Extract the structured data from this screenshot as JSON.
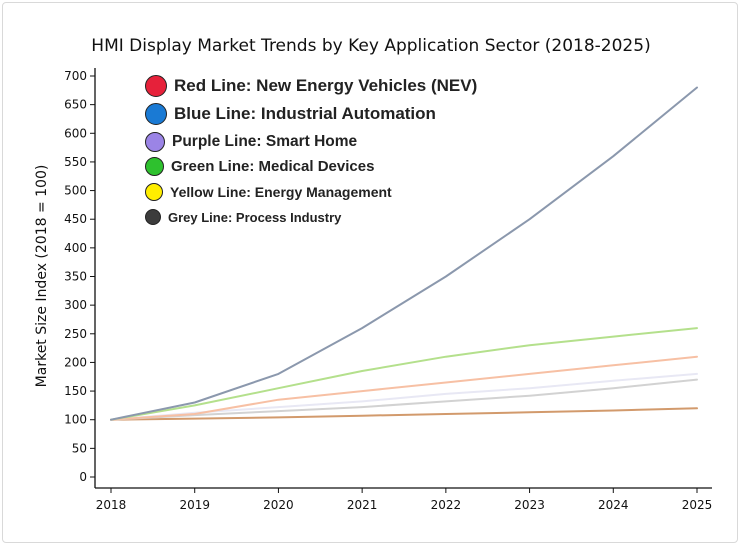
{
  "chart_data": {
    "type": "line",
    "title": "HMI Display Market Trends by Key Application Sector (2018-2025)",
    "xlabel": "",
    "ylabel": "Market Size Index (2018 = 100)",
    "x": [
      "2018",
      "2019",
      "2020",
      "2021",
      "2022",
      "2023",
      "2024",
      "2025"
    ],
    "ylim": [
      0,
      700
    ],
    "yticks": [
      0,
      50,
      100,
      150,
      200,
      250,
      300,
      350,
      400,
      450,
      500,
      550,
      600,
      650,
      700
    ],
    "series": [
      {
        "name": "Blue Line: Industrial Automation",
        "color": "#8b98ad",
        "values": [
          100,
          130,
          180,
          260,
          350,
          450,
          560,
          680
        ]
      },
      {
        "name": "Green Line: Medical Devices",
        "color": "#b4e08c",
        "values": [
          100,
          125,
          155,
          185,
          210,
          230,
          245,
          260
        ]
      },
      {
        "name": "Red Line: New Energy Vehicles (NEV)",
        "color": "#f7c0a4",
        "values": [
          100,
          110,
          135,
          150,
          165,
          180,
          195,
          210
        ]
      },
      {
        "name": "Purple Line: Smart Home",
        "color": "#e8e8f4",
        "values": [
          100,
          112,
          122,
          132,
          145,
          155,
          168,
          180
        ]
      },
      {
        "name": "Grey Line: Process Industry",
        "color": "#d2d2d2",
        "values": [
          100,
          108,
          115,
          122,
          132,
          142,
          155,
          170
        ]
      },
      {
        "name": "Yellow Line: Energy Management",
        "color": "#d29a6c",
        "values": [
          100,
          102,
          104,
          107,
          110,
          113,
          116,
          120
        ]
      }
    ]
  },
  "legend": [
    {
      "label": "Red Line: New Energy Vehicles (NEV)",
      "color": "#e6213a"
    },
    {
      "label": "Blue Line: Industrial Automation",
      "color": "#1a7ad4"
    },
    {
      "label": "Purple Line: Smart Home",
      "color": "#9b84e6"
    },
    {
      "label": "Green Line: Medical Devices",
      "color": "#2ec12e"
    },
    {
      "label": "Yellow Line: Energy Management",
      "color": "#ffee00"
    },
    {
      "label": "Grey Line: Process Industry",
      "color": "#3c3c3c"
    }
  ]
}
